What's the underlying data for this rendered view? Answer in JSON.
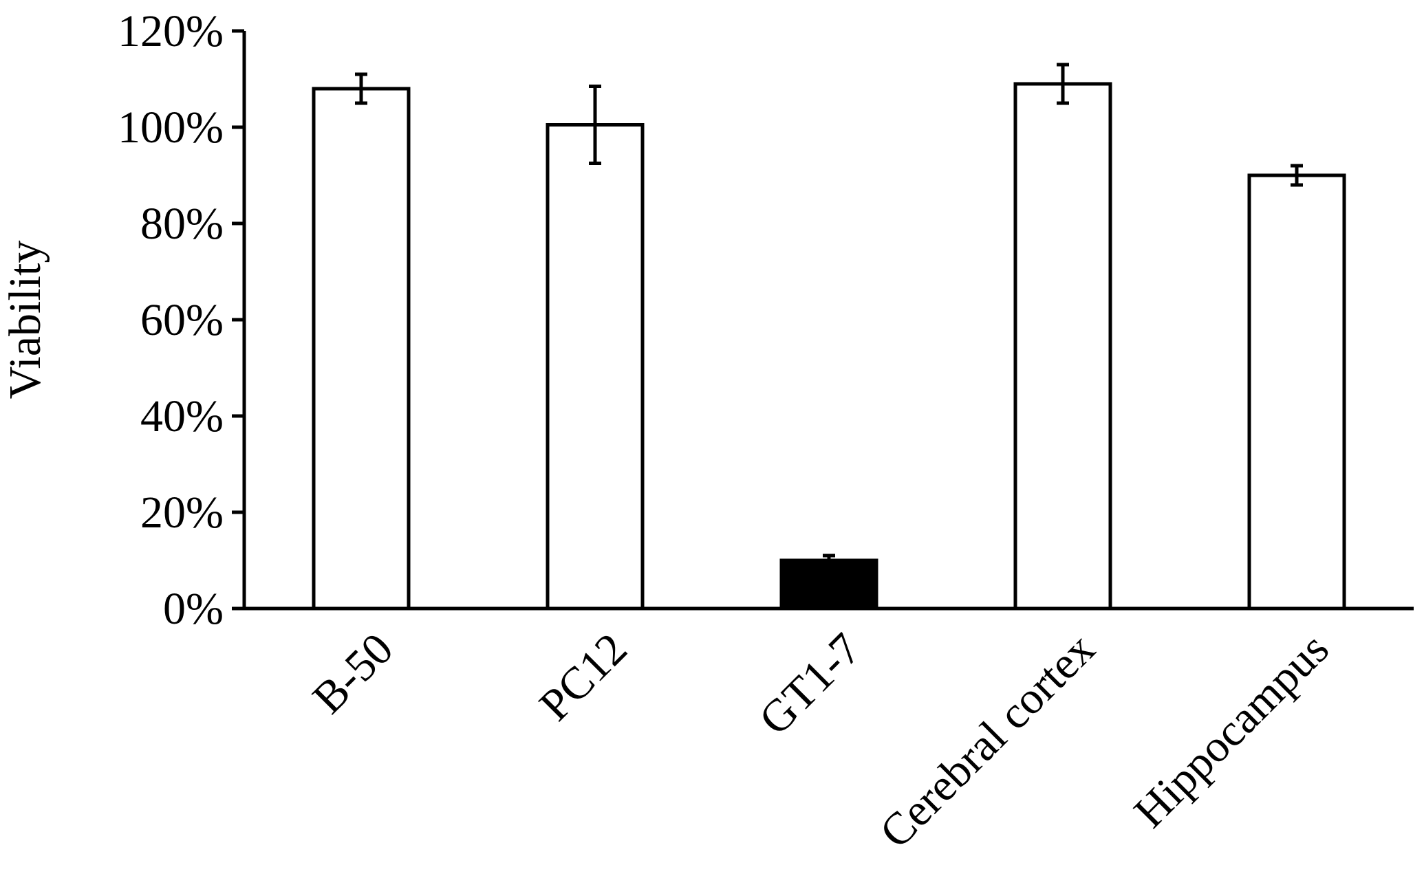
{
  "chart_data": {
    "type": "bar",
    "title": "",
    "xlabel": "",
    "ylabel": "Viability",
    "categories": [
      "B-50",
      "PC12",
      "GT1-7",
      "Cerebral cortex",
      "Hippocampus"
    ],
    "series": [
      {
        "values": [
          108,
          100.5,
          10,
          109,
          90
        ],
        "errors": [
          3,
          8,
          1,
          4,
          2
        ]
      }
    ],
    "bar_colors": [
      "#ffffff",
      "#ffffff",
      "#000000",
      "#ffffff",
      "#ffffff"
    ],
    "ylim": [
      0,
      120
    ],
    "yticks": [
      0,
      20,
      40,
      60,
      80,
      100,
      120
    ],
    "ytick_labels": [
      "0%",
      "20%",
      "40%",
      "60%",
      "80%",
      "100%",
      "120%"
    ],
    "grid": false,
    "legend": "none"
  }
}
